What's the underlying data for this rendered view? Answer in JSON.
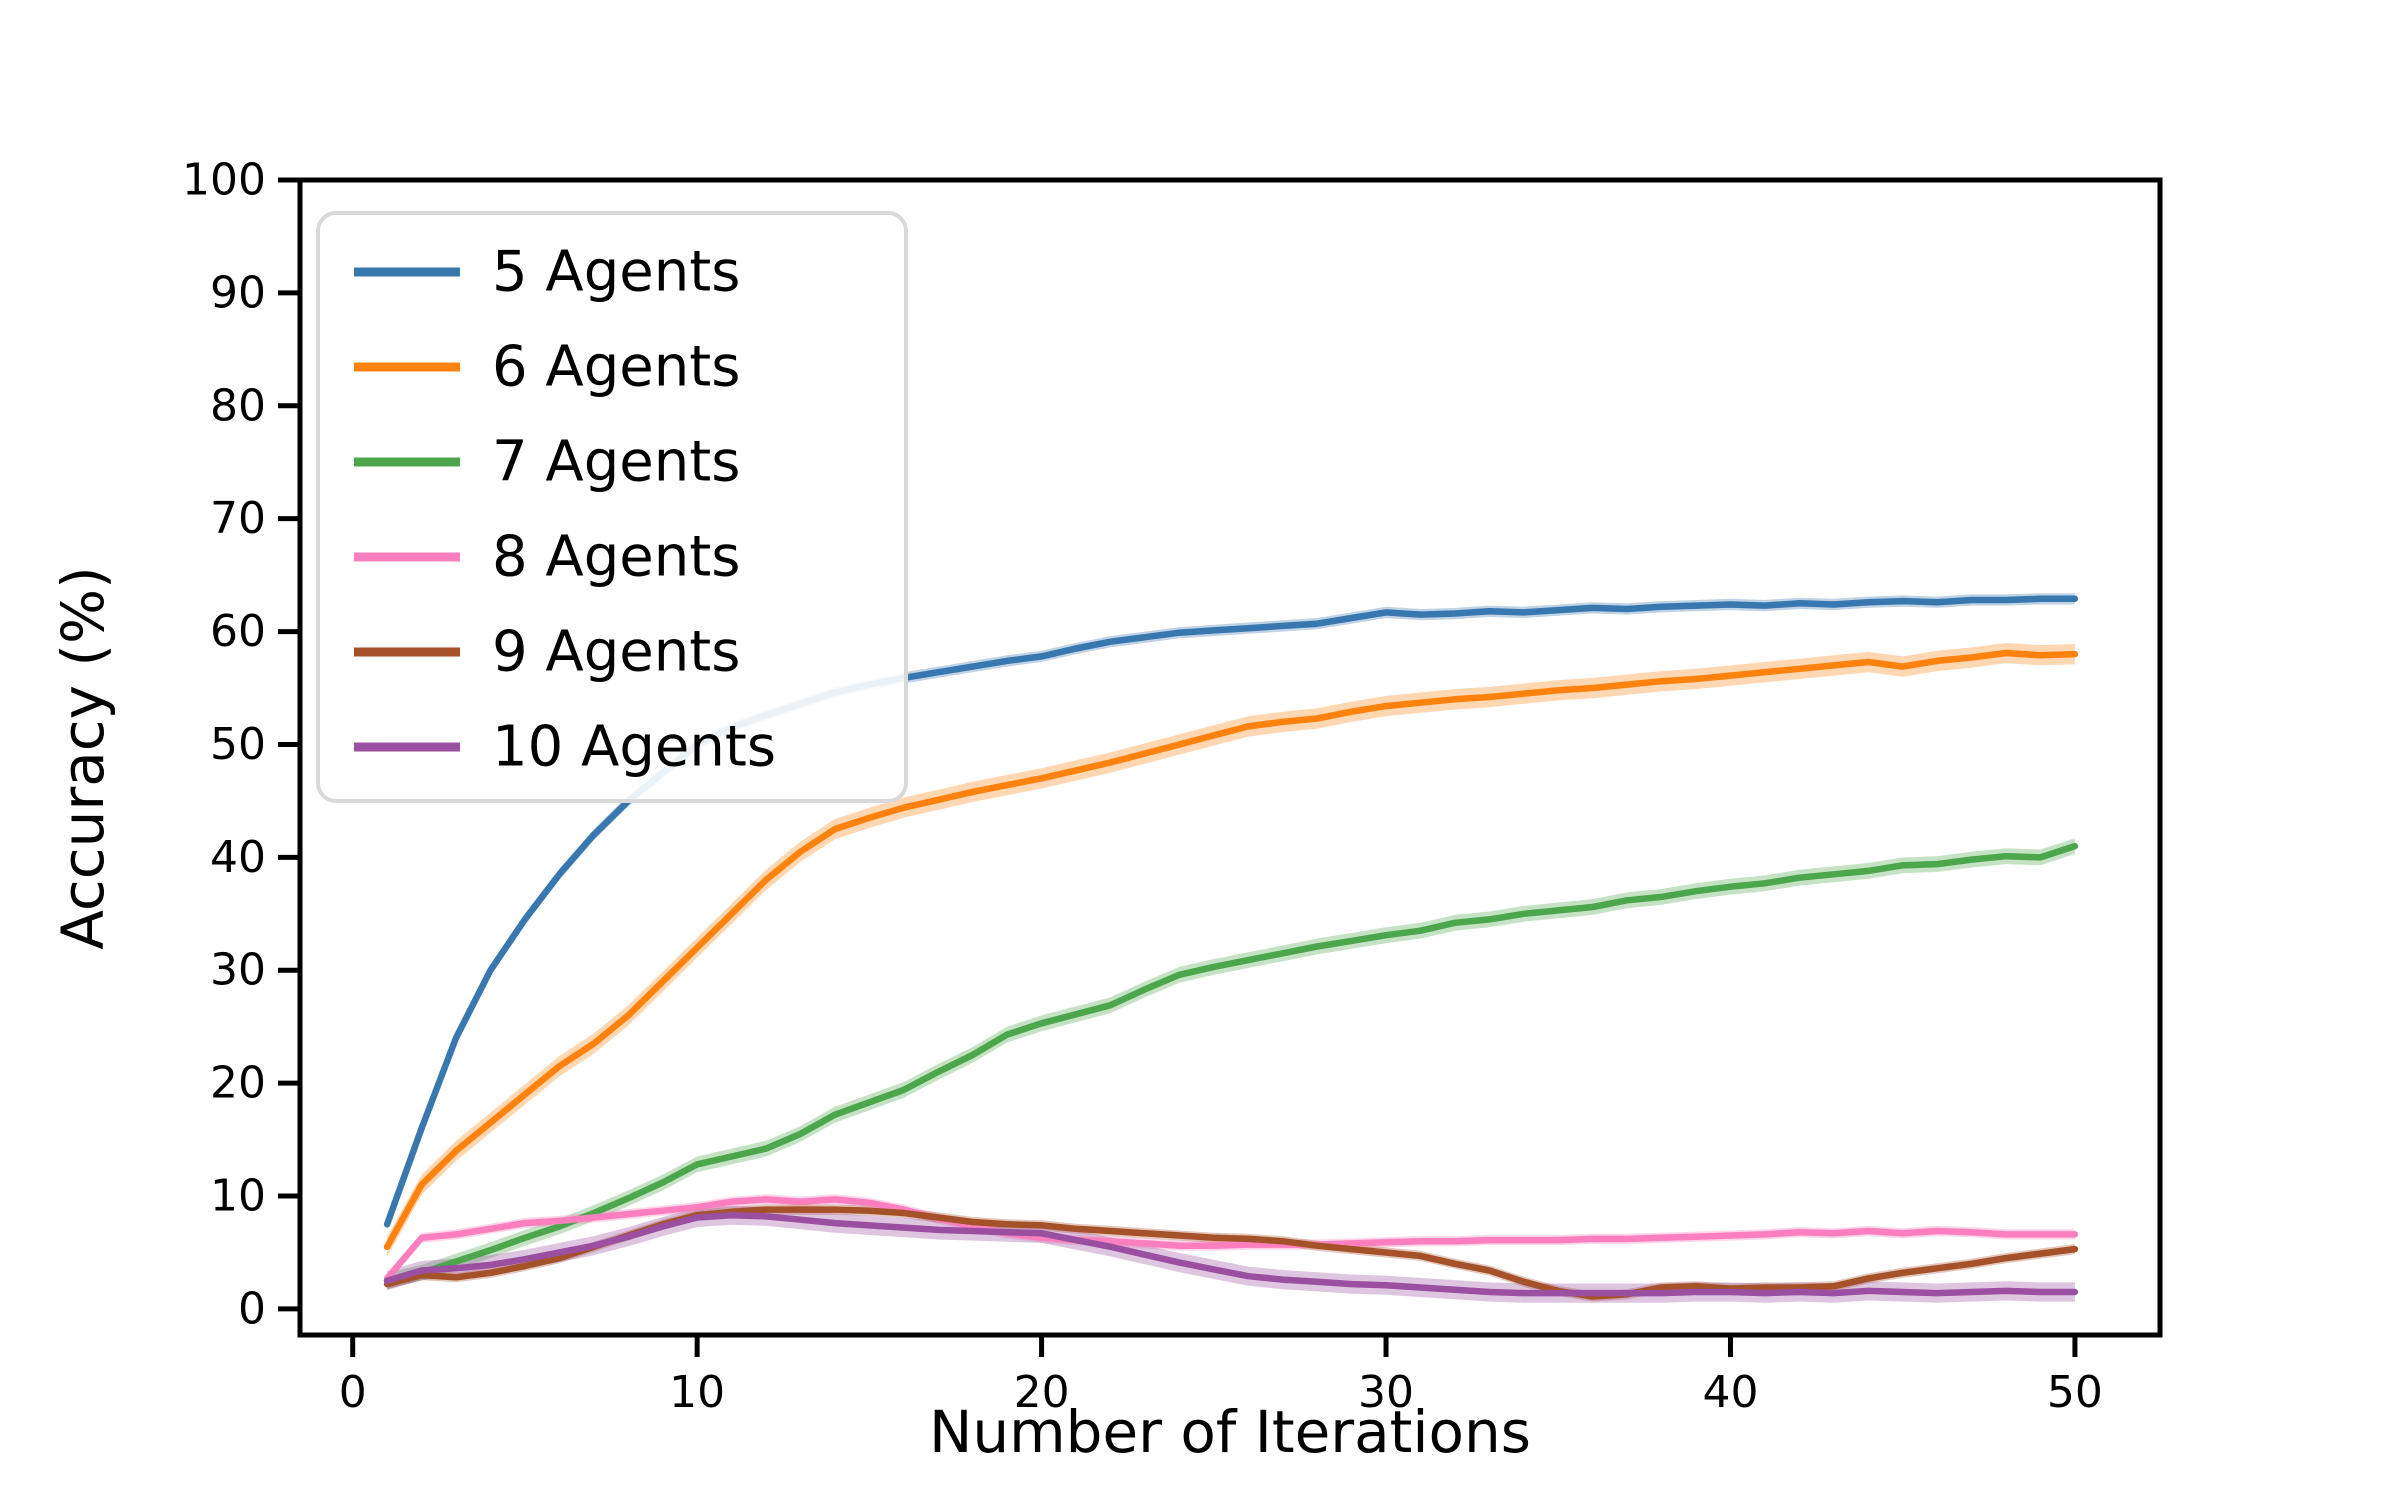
{
  "chart_data": {
    "type": "line",
    "title": "",
    "xlabel": "Number of Iterations",
    "ylabel": "Accuracy (%)",
    "xlim": [
      -1.53,
      52.47
    ],
    "ylim": [
      -2.31,
      100
    ],
    "x_ticks": [
      0,
      10,
      20,
      30,
      40,
      50
    ],
    "y_ticks": [
      0,
      10,
      20,
      30,
      40,
      50,
      60,
      70,
      80,
      90,
      100
    ],
    "grid": false,
    "legend_position": "upper left",
    "axis_color": "#000000",
    "background_color": "#ffffff",
    "legend_border_color": "#d9d9d9",
    "x": [
      1,
      2,
      3,
      4,
      5,
      6,
      7,
      8,
      9,
      10,
      11,
      12,
      13,
      14,
      15,
      16,
      17,
      18,
      19,
      20,
      21,
      22,
      23,
      24,
      25,
      26,
      27,
      28,
      29,
      30,
      31,
      32,
      33,
      34,
      35,
      36,
      37,
      38,
      39,
      40,
      41,
      42,
      43,
      44,
      45,
      46,
      47,
      48,
      49,
      50
    ],
    "series": [
      {
        "name": "5 Agents",
        "color": "#3977af",
        "band_halfwidth": 0.5,
        "values": [
          7.5,
          16.0,
          24.0,
          30.0,
          34.5,
          38.5,
          42.0,
          45.0,
          47.5,
          50.0,
          51.5,
          52.6,
          53.6,
          54.6,
          55.3,
          55.9,
          56.4,
          56.9,
          57.4,
          57.8,
          58.5,
          59.1,
          59.5,
          59.9,
          60.1,
          60.3,
          60.5,
          60.7,
          61.2,
          61.7,
          61.5,
          61.6,
          61.8,
          61.7,
          61.9,
          62.1,
          62.0,
          62.2,
          62.3,
          62.4,
          62.3,
          62.5,
          62.4,
          62.6,
          62.7,
          62.6,
          62.8,
          62.8,
          62.9,
          62.9
        ]
      },
      {
        "name": "6 Agents",
        "color": "#ff820e",
        "band_halfwidth": 0.9,
        "values": [
          5.5,
          11.0,
          14.0,
          16.5,
          19.0,
          21.5,
          23.5,
          26.0,
          29.0,
          32.0,
          35.0,
          38.0,
          40.5,
          42.5,
          43.5,
          44.4,
          45.1,
          45.8,
          46.4,
          47.0,
          47.7,
          48.4,
          49.2,
          50.0,
          50.8,
          51.6,
          52.0,
          52.3,
          52.9,
          53.4,
          53.7,
          54.0,
          54.2,
          54.5,
          54.8,
          55.0,
          55.3,
          55.6,
          55.8,
          56.1,
          56.4,
          56.7,
          57.0,
          57.3,
          56.9,
          57.4,
          57.7,
          58.1,
          57.9,
          58.0
        ]
      },
      {
        "name": "7 Agents",
        "color": "#4ca64c",
        "band_halfwidth": 0.7,
        "values": [
          2.5,
          3.2,
          4.2,
          5.2,
          6.3,
          7.3,
          8.5,
          9.8,
          11.2,
          12.8,
          13.5,
          14.2,
          15.5,
          17.2,
          18.3,
          19.4,
          21.0,
          22.5,
          24.3,
          25.3,
          26.1,
          26.9,
          28.3,
          29.6,
          30.3,
          30.9,
          31.5,
          32.1,
          32.6,
          33.1,
          33.5,
          34.2,
          34.5,
          35.0,
          35.3,
          35.6,
          36.2,
          36.5,
          37.0,
          37.4,
          37.7,
          38.2,
          38.5,
          38.8,
          39.3,
          39.4,
          39.8,
          40.1,
          40.0,
          41.0
        ]
      },
      {
        "name": "8 Agents",
        "color": "#fb7fbe",
        "band_halfwidth": 0.45,
        "values": [
          2.7,
          6.3,
          6.6,
          7.1,
          7.6,
          7.8,
          8.1,
          8.4,
          8.7,
          9.0,
          9.5,
          9.7,
          9.5,
          9.7,
          9.4,
          8.8,
          8.0,
          7.3,
          6.7,
          6.3,
          6.1,
          6.0,
          5.8,
          5.6,
          5.6,
          5.7,
          5.7,
          5.7,
          5.8,
          5.9,
          6.0,
          6.0,
          6.1,
          6.1,
          6.1,
          6.2,
          6.2,
          6.3,
          6.4,
          6.5,
          6.6,
          6.8,
          6.7,
          6.9,
          6.7,
          6.9,
          6.8,
          6.6,
          6.6,
          6.6
        ]
      },
      {
        "name": "9 Agents",
        "color": "#a5522b",
        "band_halfwidth": 0.45,
        "values": [
          2.2,
          3.0,
          2.8,
          3.2,
          3.8,
          4.5,
          5.5,
          6.5,
          7.5,
          8.3,
          8.6,
          8.8,
          8.8,
          8.8,
          8.7,
          8.5,
          8.1,
          7.7,
          7.5,
          7.4,
          7.1,
          6.9,
          6.7,
          6.5,
          6.3,
          6.2,
          6.0,
          5.6,
          5.3,
          5.0,
          4.7,
          4.0,
          3.4,
          2.4,
          1.6,
          1.1,
          1.3,
          1.9,
          2.0,
          1.8,
          1.9,
          1.9,
          2.0,
          2.7,
          3.2,
          3.6,
          4.0,
          4.5,
          4.9,
          5.3
        ]
      },
      {
        "name": "10 Agents",
        "color": "#9b4fa0",
        "band_halfwidth": 0.85,
        "values": [
          2.5,
          3.4,
          3.6,
          3.9,
          4.4,
          5.0,
          5.6,
          6.4,
          7.3,
          8.1,
          8.3,
          8.2,
          7.9,
          7.6,
          7.4,
          7.2,
          7.0,
          6.9,
          6.8,
          6.7,
          6.1,
          5.5,
          4.8,
          4.1,
          3.5,
          2.9,
          2.6,
          2.4,
          2.2,
          2.1,
          1.9,
          1.7,
          1.5,
          1.4,
          1.4,
          1.4,
          1.4,
          1.4,
          1.5,
          1.5,
          1.4,
          1.5,
          1.4,
          1.6,
          1.5,
          1.4,
          1.5,
          1.6,
          1.5,
          1.5
        ]
      }
    ]
  }
}
